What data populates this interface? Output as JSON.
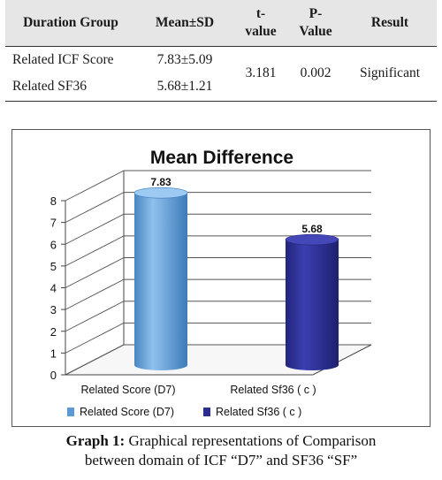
{
  "table": {
    "headers": {
      "group": "Duration Group",
      "mean_sd": "Mean±SD",
      "t_value_line1": "t-",
      "t_value_line2": "value",
      "p_value_line1": "P-",
      "p_value_line2": "Value",
      "result": "Result"
    },
    "rows": [
      {
        "group": "Related ICF Score",
        "mean_sd": "7.83±5.09"
      },
      {
        "group": "Related SF36",
        "mean_sd": "5.68±1.21"
      }
    ],
    "t_value": "3.181",
    "p_value": "0.002",
    "result": "Significant"
  },
  "chart_data": {
    "type": "bar",
    "title": "Mean Difference",
    "categories": [
      "Related Score (D7)",
      "Related Sf36 ( c )"
    ],
    "values": [
      7.83,
      5.68
    ],
    "data_labels": [
      "7.83",
      "5.68"
    ],
    "ylim": [
      0,
      8
    ],
    "yticks": [
      "0",
      "1",
      "2",
      "3",
      "4",
      "5",
      "6",
      "7",
      "8"
    ],
    "grid": true,
    "legend_position": "bottom",
    "legend": [
      "Related Score (D7)",
      "Related Sf36 ( c )"
    ],
    "style": "3d-cylinder",
    "colors": [
      "#5b9bd5",
      "#2b2e8f"
    ]
  },
  "caption": {
    "label": "Graph 1:",
    "line1": "Graphical representations of Comparison",
    "line2": "between domain of ICF “D7” and SF36 “SF”"
  }
}
